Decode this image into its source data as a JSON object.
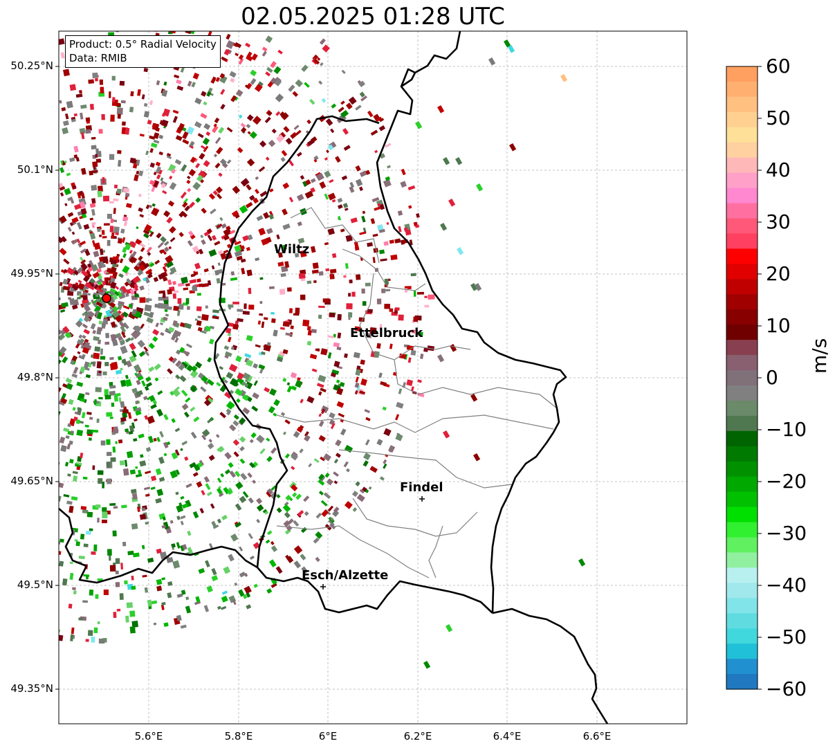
{
  "title": "02.05.2025 01:28 UTC",
  "info_box": {
    "product": "Product: 0.5° Radial Velocity",
    "source": "Data: RMIB"
  },
  "axes": {
    "y_ticks": [
      "50.25°N",
      "50.1°N",
      "49.95°N",
      "49.8°N",
      "49.65°N",
      "49.5°N",
      "49.35°N"
    ],
    "x_ticks": [
      "5.6°E",
      "5.8°E",
      "6°E",
      "6.2°E",
      "6.4°E",
      "6.6°E"
    ],
    "lon_range": [
      5.4,
      6.8
    ],
    "lat_range": [
      49.3,
      50.3
    ],
    "grid": "dashed"
  },
  "places": [
    {
      "name": "Wiltz",
      "lon": 5.94,
      "lat": 49.97
    },
    {
      "name": "Ettelbruck",
      "lon": 6.1,
      "lat": 49.85
    },
    {
      "name": "Findel",
      "lon": 6.21,
      "lat": 49.63
    },
    {
      "name": "Esch/Alzette",
      "lon": 5.99,
      "lat": 49.5
    }
  ],
  "radar_site": {
    "lon": 5.51,
    "lat": 49.92,
    "marker": "red-circle"
  },
  "colorbar": {
    "ticks": [
      "60",
      "50",
      "40",
      "30",
      "20",
      "10",
      "0",
      "−10",
      "−20",
      "−30",
      "−40",
      "−50",
      "−60"
    ],
    "min": -60,
    "max": 60,
    "label": "m/s",
    "colors": [
      "#ffa060",
      "#ffb070",
      "#ffc080",
      "#ffd090",
      "#ffe098",
      "#ffd0a0",
      "#ffb8b8",
      "#ffa0c8",
      "#ff88d0",
      "#ff70a0",
      "#ff5878",
      "#ff4060",
      "#ff0000",
      "#e00000",
      "#c00000",
      "#a00000",
      "#880000",
      "#700000",
      "#884050",
      "#886070",
      "#807078",
      "#808080",
      "#6a8a6a",
      "#507850",
      "#006400",
      "#007a00",
      "#009000",
      "#00a800",
      "#00c000",
      "#00e000",
      "#30f030",
      "#60f060",
      "#90f0a0",
      "#b8f0f0",
      "#a0e8ec",
      "#80e4e8",
      "#60dce0",
      "#40d8dc",
      "#20c0d8",
      "#2090d0",
      "#1f78c0"
    ]
  },
  "colors": {
    "border_country": "#000000",
    "border_canton": "#808080",
    "velocity_away": "#8b0000",
    "velocity_zero": "#808080",
    "velocity_toward": "#008000"
  }
}
